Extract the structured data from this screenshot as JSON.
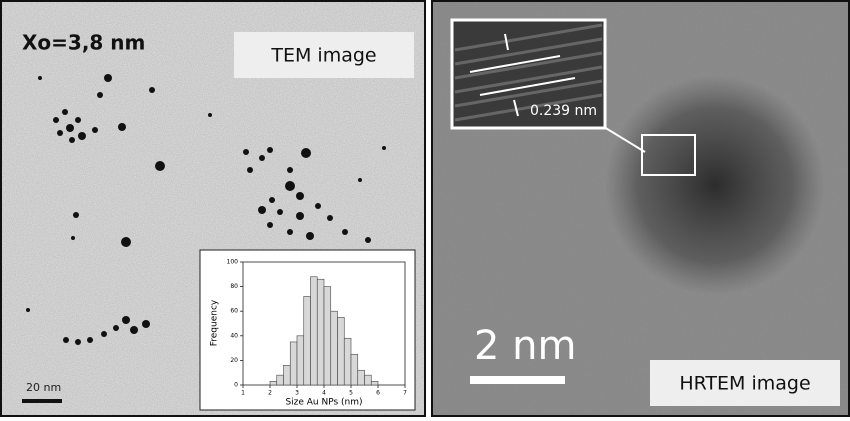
{
  "left_panel": {
    "label": "Xo=3,8 nm",
    "tag": "TEM image",
    "scale": "20 nm"
  },
  "right_panel": {
    "inset_label": "0.239 nm",
    "scale": "2 nm",
    "tag": "HRTEM image"
  },
  "chart_data": {
    "type": "histogram",
    "xlabel": "Size Au NPs (nm)",
    "ylabel": "Frequency",
    "bins": [
      2.0,
      2.25,
      2.5,
      2.75,
      3.0,
      3.25,
      3.5,
      3.75,
      4.0,
      4.25,
      4.5,
      4.75,
      5.0,
      5.25,
      5.5,
      5.75,
      6.0
    ],
    "values": [
      3,
      8,
      16,
      35,
      40,
      72,
      88,
      86,
      80,
      60,
      55,
      38,
      25,
      12,
      8,
      3
    ],
    "color": "#d8d8d8",
    "xlim": [
      1,
      7
    ],
    "xticks": [
      1,
      2,
      3,
      4,
      5,
      6,
      7
    ],
    "ylim": [
      0,
      100
    ],
    "yticks": [
      0,
      20,
      40,
      60,
      80,
      100
    ]
  }
}
